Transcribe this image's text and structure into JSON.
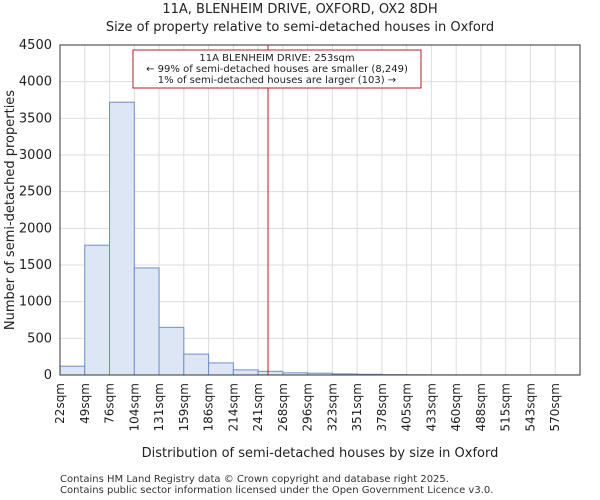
{
  "chart_data": {
    "type": "bar",
    "title": "11A, BLENHEIM DRIVE, OXFORD, OX2 8DH",
    "subtitle": "Size of property relative to semi-detached houses in Oxford",
    "xlabel": "Distribution of semi-detached houses by size in Oxford",
    "ylabel": "Number of semi-detached properties",
    "ylim": [
      0,
      4500
    ],
    "yticks": [
      0,
      500,
      1000,
      1500,
      2000,
      2500,
      3000,
      3500,
      4000,
      4500
    ],
    "categories": [
      "22sqm",
      "49sqm",
      "76sqm",
      "104sqm",
      "131sqm",
      "159sqm",
      "186sqm",
      "214sqm",
      "241sqm",
      "268sqm",
      "296sqm",
      "323sqm",
      "351sqm",
      "378sqm",
      "405sqm",
      "433sqm",
      "460sqm",
      "488sqm",
      "515sqm",
      "543sqm",
      "570sqm"
    ],
    "values": [
      120,
      1770,
      3720,
      1460,
      650,
      285,
      165,
      70,
      50,
      30,
      25,
      15,
      10,
      5,
      3,
      2,
      2,
      1,
      1,
      1,
      1
    ],
    "property_marker": {
      "value_index": 8.4
    },
    "annotation": {
      "line1": "11A BLENHEIM DRIVE: 253sqm",
      "line2": "← 99% of semi-detached houses are smaller (8,249)",
      "line3": "1% of semi-detached houses are larger (103) →"
    },
    "colors": {
      "bar_fill": "#dce6f4",
      "bar_stroke": "#6f8fc9",
      "marker": "#c0182a",
      "grid": "#dddddd"
    },
    "grid": true
  },
  "footer": {
    "line1": "Contains HM Land Registry data © Crown copyright and database right 2025.",
    "line2": "Contains public sector information licensed under the Open Government Licence v3.0."
  }
}
